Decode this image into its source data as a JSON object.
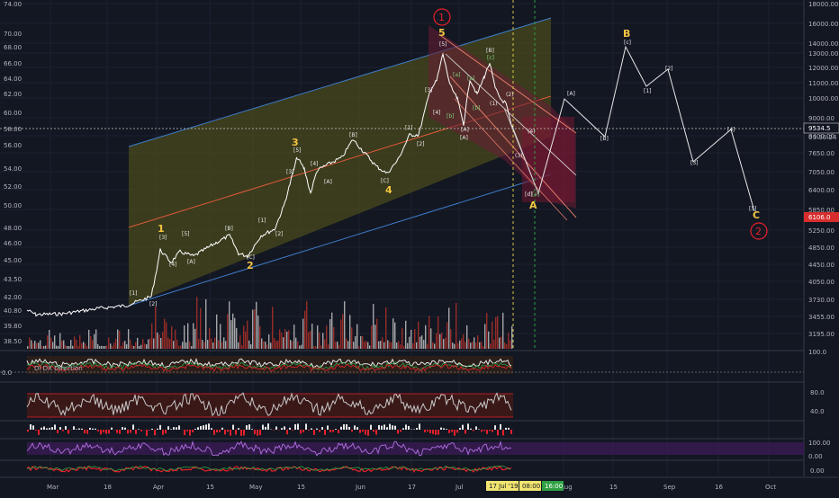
{
  "colors": {
    "background": "#131722",
    "axis_text": "#b2b5be",
    "grid": "#1f2330",
    "price_line": "#ffffff",
    "channel_fill": "#4a4a1f",
    "channel_line": "#3d7cc9",
    "mid_line": "#e0583b",
    "bear_channel_fill": "#5b1c2f",
    "wave_yellow": "#f5c542",
    "wave_red": "#e8202a",
    "current_price_bg": "#131722",
    "target_price_bg": "#d72d2d",
    "vol_red": "#c0392b",
    "vol_white": "#d0d0d0",
    "time_marker_bg": "#f1e46f",
    "time_marker_green": "#2ea043"
  },
  "left_axis": {
    "ticks": [
      "74.00",
      "70.00",
      "68.00",
      "66.00",
      "64.00",
      "62.00",
      "60.00",
      "58.00",
      "56.00",
      "54.00",
      "52.00",
      "50.00",
      "48.00",
      "46.00",
      "45.00",
      "43.50",
      "42.00",
      "40.80",
      "39.80",
      "38.50"
    ]
  },
  "right_axis": {
    "ticks": [
      "18000.00",
      "16000.00",
      "14000.00",
      "13000.00",
      "12000.00",
      "11000.00",
      "10000.00",
      "9000.00",
      "8400.00",
      "7650.00",
      "7050.00",
      "6400.00",
      "5850.00",
      "5250.00",
      "4850.00",
      "4450.00",
      "4050.00",
      "3730.00",
      "3455.00",
      "3195.00"
    ],
    "current_price": "9534.5",
    "countdown": "03:36:24",
    "target_price": "6106.0"
  },
  "indicator_axes": {
    "panel1": [
      "100.0",
      "0.0"
    ],
    "panel2": [
      "80.0",
      "40.0"
    ],
    "panel3": [
      "100.00",
      "0.00"
    ],
    "panel4": [
      "0.00"
    ]
  },
  "indicator_label": "DI DX Direction",
  "time_axis": {
    "labels": [
      "Mar",
      "18",
      "Apr",
      "15",
      "May",
      "15",
      "Jun",
      "17",
      "Jul",
      "Aug",
      "15",
      "Sep",
      "16",
      "Oct"
    ],
    "highlight_date": "17 Jul '19",
    "highlight_time": "08:00",
    "highlight_time2": "16:00"
  },
  "wave_labels": {
    "w1": "1",
    "w2": "2",
    "w3": "3",
    "w4": "4",
    "w5": "5",
    "wA": "A",
    "wB": "B",
    "wC": "C",
    "circled1": "1",
    "circled2": "2",
    "sub": [
      "[1]",
      "[2]",
      "[3]",
      "[4]",
      "[5]",
      "[A]",
      "[B]",
      "[C]",
      "[a]",
      "[b]",
      "[c]",
      "[d]",
      "[e]",
      "(1)",
      "(2)",
      "(3)",
      "(4)",
      "(5)"
    ]
  }
}
